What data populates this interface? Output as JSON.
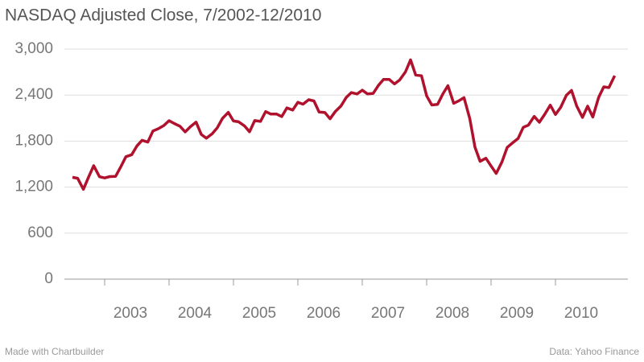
{
  "chart_data": {
    "type": "line",
    "title": "NASDAQ Adjusted Close, 7/2002-12/2010",
    "footer_left": "Made with Chartbuilder",
    "footer_right": "Data: Yahoo Finance",
    "x": [
      2002.5,
      2002.58,
      2002.67,
      2002.75,
      2002.83,
      2002.92,
      2003.0,
      2003.08,
      2003.17,
      2003.25,
      2003.33,
      2003.42,
      2003.5,
      2003.58,
      2003.67,
      2003.75,
      2003.83,
      2003.92,
      2004.0,
      2004.08,
      2004.17,
      2004.25,
      2004.33,
      2004.42,
      2004.5,
      2004.58,
      2004.67,
      2004.75,
      2004.83,
      2004.92,
      2005.0,
      2005.08,
      2005.17,
      2005.25,
      2005.33,
      2005.42,
      2005.5,
      2005.58,
      2005.67,
      2005.75,
      2005.83,
      2005.92,
      2006.0,
      2006.08,
      2006.17,
      2006.25,
      2006.33,
      2006.42,
      2006.5,
      2006.58,
      2006.67,
      2006.75,
      2006.83,
      2006.92,
      2007.0,
      2007.08,
      2007.17,
      2007.25,
      2007.33,
      2007.42,
      2007.5,
      2007.58,
      2007.67,
      2007.75,
      2007.83,
      2007.92,
      2008.0,
      2008.08,
      2008.17,
      2008.25,
      2008.33,
      2008.42,
      2008.5,
      2008.58,
      2008.67,
      2008.75,
      2008.83,
      2008.92,
      2009.0,
      2009.08,
      2009.17,
      2009.25,
      2009.33,
      2009.42,
      2009.5,
      2009.58,
      2009.67,
      2009.75,
      2009.83,
      2009.92,
      2010.0,
      2010.08,
      2010.17,
      2010.25,
      2010.33,
      2010.42,
      2010.5,
      2010.58,
      2010.67,
      2010.75,
      2010.83,
      2010.92
    ],
    "series": [
      {
        "name": "NASDAQ",
        "color": "#b0122e",
        "values": [
          1328,
          1315,
          1172,
          1330,
          1479,
          1335,
          1320,
          1337,
          1341,
          1464,
          1596,
          1623,
          1735,
          1810,
          1787,
          1932,
          1960,
          2003,
          2066,
          2030,
          1994,
          1920,
          1987,
          2048,
          1887,
          1838,
          1897,
          1975,
          2097,
          2175,
          2062,
          2052,
          1999,
          1922,
          2068,
          2057,
          2185,
          2152,
          2152,
          2120,
          2233,
          2205,
          2306,
          2281,
          2340,
          2323,
          2179,
          2172,
          2091,
          2184,
          2258,
          2367,
          2432,
          2415,
          2464,
          2416,
          2422,
          2525,
          2605,
          2603,
          2546,
          2596,
          2701,
          2859,
          2661,
          2652,
          2390,
          2271,
          2279,
          2413,
          2523,
          2293,
          2326,
          2368,
          2092,
          1721,
          1536,
          1577,
          1476,
          1378,
          1529,
          1717,
          1774,
          1835,
          1979,
          2009,
          2122,
          2045,
          2145,
          2269,
          2147,
          2238,
          2398,
          2461,
          2257,
          2109,
          2255,
          2114,
          2369,
          2507,
          2498,
          2653
        ]
      }
    ],
    "xlim": [
      2002.5,
      2011
    ],
    "xticks": [
      2003,
      2004,
      2005,
      2006,
      2007,
      2008,
      2009,
      2010
    ],
    "ylim": [
      0,
      3000
    ],
    "yticks": [
      0,
      600,
      {
        "value": 1200,
        "label": "1,200"
      },
      {
        "value": 1800,
        "label": "1,800"
      },
      {
        "value": 2400,
        "label": "2,400"
      },
      {
        "value": 3000,
        "label": "3,000"
      }
    ],
    "grid": true
  }
}
